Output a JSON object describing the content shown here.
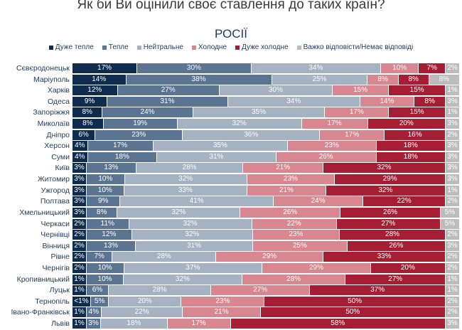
{
  "chart_data": {
    "type": "bar",
    "orientation": "horizontal",
    "stacked": true,
    "title": "Як би Ви оцінили своє ставлення до таких країн?",
    "subtitle": "РОСІЇ",
    "legend_position": "top",
    "series_names": [
      "Дуже тепле",
      "Тепле",
      "Нейтральне",
      "Холодне",
      "Дуже холодне",
      "Важко відповісти/Немає відповіді"
    ],
    "colors": [
      "#0f2c4f",
      "#5b7491",
      "#a4b2c1",
      "#d8868f",
      "#a61e33",
      "#bcbcbc"
    ],
    "categories": [
      "Сєвєродонецьк",
      "Маріуполь",
      "Харків",
      "Одеса",
      "Запоріжжя",
      "Миколаїв",
      "Дніпро",
      "Херсон",
      "Суми",
      "Київ",
      "Житомир",
      "Ужгород",
      "Полтава",
      "Хмельницький",
      "Черкаси",
      "Чернівці",
      "Вінниця",
      "Рівне",
      "Чернігів",
      "Кропивницький",
      "Луцьк",
      "Тернопіль",
      "Івано-Франківськ",
      "Львів"
    ],
    "values": [
      [
        17,
        30,
        34,
        10,
        7,
        2
      ],
      [
        14,
        38,
        25,
        8,
        8,
        8
      ],
      [
        12,
        27,
        30,
        15,
        15,
        1
      ],
      [
        9,
        31,
        34,
        14,
        8,
        3
      ],
      [
        8,
        24,
        35,
        17,
        15,
        1
      ],
      [
        8,
        19,
        32,
        17,
        20,
        3
      ],
      [
        6,
        23,
        36,
        17,
        16,
        2
      ],
      [
        4,
        17,
        35,
        23,
        18,
        3
      ],
      [
        4,
        18,
        31,
        26,
        18,
        3
      ],
      [
        3,
        13,
        28,
        21,
        32,
        3
      ],
      [
        3,
        10,
        32,
        23,
        29,
        3
      ],
      [
        3,
        10,
        33,
        21,
        32,
        1
      ],
      [
        3,
        9,
        41,
        24,
        22,
        2
      ],
      [
        3,
        8,
        32,
        26,
        26,
        5
      ],
      [
        2,
        11,
        32,
        22,
        27,
        5
      ],
      [
        2,
        12,
        32,
        23,
        28,
        2
      ],
      [
        2,
        13,
        31,
        25,
        26,
        3
      ],
      [
        2,
        7,
        28,
        29,
        33,
        2
      ],
      [
        2,
        10,
        37,
        29,
        20,
        2
      ],
      [
        1,
        10,
        32,
        28,
        27,
        1
      ],
      [
        1,
        6,
        28,
        27,
        37,
        1
      ],
      [
        0.5,
        5,
        20,
        23,
        50,
        2
      ],
      [
        1,
        4,
        22,
        21,
        50,
        2
      ],
      [
        1,
        3,
        18,
        17,
        58,
        3
      ]
    ],
    "labels": [
      [
        "17%",
        "30%",
        "34%",
        "10%",
        "7%",
        "2%"
      ],
      [
        "14%",
        "38%",
        "25%",
        "8%",
        "8%",
        "8%"
      ],
      [
        "12%",
        "27%",
        "30%",
        "15%",
        "15%",
        "1%"
      ],
      [
        "9%",
        "31%",
        "34%",
        "14%",
        "8%",
        "3%"
      ],
      [
        "8%",
        "24%",
        "35%",
        "17%",
        "15%",
        "1%"
      ],
      [
        "8%",
        "19%",
        "32%",
        "17%",
        "20%",
        "3%"
      ],
      [
        "6%",
        "23%",
        "36%",
        "17%",
        "16%",
        "2%"
      ],
      [
        "4%",
        "17%",
        "35%",
        "23%",
        "18%",
        "3%"
      ],
      [
        "4%",
        "18%",
        "31%",
        "26%",
        "18%",
        "3%"
      ],
      [
        "3%",
        "13%",
        "28%",
        "21%",
        "32%",
        "3%"
      ],
      [
        "3%",
        "10%",
        "32%",
        "23%",
        "29%",
        "3%"
      ],
      [
        "3%",
        "10%",
        "33%",
        "21%",
        "32%",
        "1%"
      ],
      [
        "3%",
        "9%",
        "41%",
        "24%",
        "22%",
        "2%"
      ],
      [
        "3%",
        "8%",
        "32%",
        "26%",
        "26%",
        "5%"
      ],
      [
        "2%",
        "11%",
        "32%",
        "22%",
        "27%",
        "5%"
      ],
      [
        "2%",
        "12%",
        "32%",
        "23%",
        "28%",
        "2%"
      ],
      [
        "2%",
        "13%",
        "31%",
        "25%",
        "26%",
        "3%"
      ],
      [
        "2%",
        "7%",
        "28%",
        "29%",
        "33%",
        "2%"
      ],
      [
        "2%",
        "10%",
        "37%",
        "29%",
        "20%",
        "2%"
      ],
      [
        "1%",
        "10%",
        "32%",
        "28%",
        "27%",
        "1%"
      ],
      [
        "1%",
        "6%",
        "28%",
        "27%",
        "37%",
        "1%"
      ],
      [
        "<1%",
        "5%",
        "20%",
        "23%",
        "50%",
        "2%"
      ],
      [
        "1%",
        "4%",
        "22%",
        "21%",
        "50%",
        "2%"
      ],
      [
        "1%",
        "3%",
        "18%",
        "17%",
        "58%",
        "3%"
      ]
    ]
  }
}
